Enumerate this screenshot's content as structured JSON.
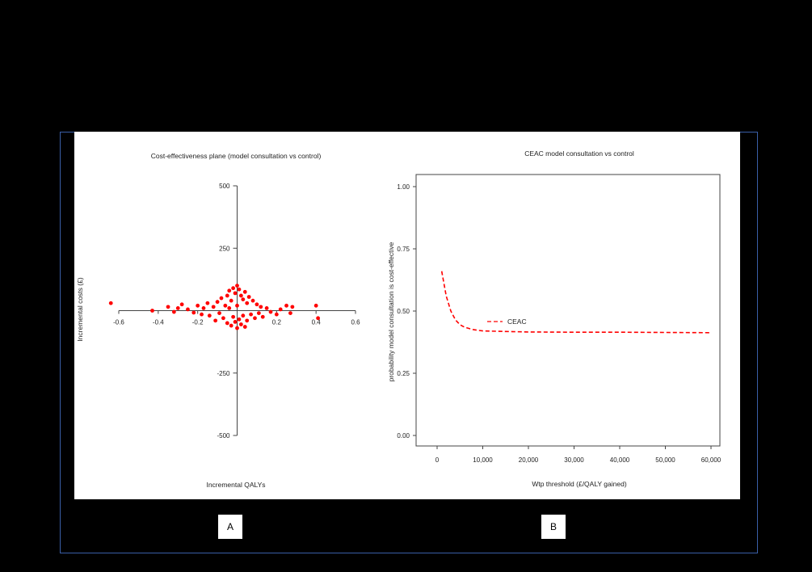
{
  "panel_labels": {
    "a": "A",
    "b": "B"
  },
  "colors": {
    "series": "#ff0000",
    "frame": "#3a5fa8"
  },
  "chart_data": [
    {
      "type": "scatter",
      "title": "Cost-effectiveness plane (model consultation vs control)",
      "xlabel": "Incremental QALYs",
      "ylabel": "Incremental costs (£)",
      "xlim": [
        -0.6,
        0.6
      ],
      "ylim": [
        -500,
        500
      ],
      "xticks": [
        -0.6,
        -0.4,
        -0.2,
        0.2,
        0.4,
        0.6
      ],
      "xtick_labels": [
        "-0.6",
        "-0.4",
        "-0.2",
        "0.2",
        "0.4",
        "0.6"
      ],
      "yticks": [
        -500,
        -250,
        250,
        500
      ],
      "ytick_labels": [
        "-500",
        "-250",
        "250",
        "500"
      ],
      "grid": false,
      "series": [
        {
          "points": [
            [
              -0.64,
              30
            ],
            [
              -0.43,
              0
            ],
            [
              -0.35,
              15
            ],
            [
              -0.32,
              -5
            ],
            [
              -0.3,
              10
            ],
            [
              -0.28,
              25
            ],
            [
              -0.25,
              5
            ],
            [
              -0.22,
              -8
            ],
            [
              -0.2,
              20
            ],
            [
              -0.18,
              -15
            ],
            [
              -0.17,
              10
            ],
            [
              -0.15,
              30
            ],
            [
              -0.14,
              -20
            ],
            [
              -0.12,
              15
            ],
            [
              -0.11,
              -40
            ],
            [
              -0.1,
              35
            ],
            [
              -0.09,
              -10
            ],
            [
              -0.08,
              50
            ],
            [
              -0.07,
              -30
            ],
            [
              -0.06,
              20
            ],
            [
              -0.05,
              60
            ],
            [
              -0.05,
              -50
            ],
            [
              -0.04,
              10
            ],
            [
              -0.04,
              80
            ],
            [
              -0.03,
              -60
            ],
            [
              -0.03,
              40
            ],
            [
              -0.02,
              90
            ],
            [
              -0.02,
              -25
            ],
            [
              -0.01,
              70
            ],
            [
              -0.01,
              -45
            ],
            [
              0,
              100
            ],
            [
              0,
              -70
            ],
            [
              0,
              20
            ],
            [
              0.01,
              85
            ],
            [
              0.01,
              -35
            ],
            [
              0.02,
              60
            ],
            [
              0.02,
              -55
            ],
            [
              0.03,
              45
            ],
            [
              0.03,
              -20
            ],
            [
              0.04,
              75
            ],
            [
              0.04,
              -65
            ],
            [
              0.05,
              30
            ],
            [
              0.05,
              -40
            ],
            [
              0.06,
              55
            ],
            [
              0.07,
              -15
            ],
            [
              0.08,
              40
            ],
            [
              0.09,
              -30
            ],
            [
              0.1,
              25
            ],
            [
              0.11,
              -10
            ],
            [
              0.12,
              15
            ],
            [
              0.13,
              -25
            ],
            [
              0.15,
              10
            ],
            [
              0.17,
              -5
            ],
            [
              0.2,
              -15
            ],
            [
              0.22,
              5
            ],
            [
              0.25,
              20
            ],
            [
              0.27,
              -10
            ],
            [
              0.28,
              15
            ],
            [
              0.4,
              20
            ],
            [
              0.41,
              -30
            ]
          ]
        }
      ]
    },
    {
      "type": "line",
      "title": "CEAC model consultation vs control",
      "xlabel": "Wtp threshold (£/QALY gained)",
      "ylabel": "probability model consultation is cost-effective",
      "xlim": [
        0,
        60000
      ],
      "ylim": [
        0,
        1
      ],
      "xticks": [
        0,
        10000,
        20000,
        30000,
        40000,
        50000,
        60000
      ],
      "xtick_labels": [
        "0",
        "10,000",
        "20,000",
        "30,000",
        "40,000",
        "50,000",
        "60,000"
      ],
      "yticks": [
        0,
        0.25,
        0.5,
        0.75,
        1
      ],
      "ytick_labels": [
        "0.00",
        "0.25",
        "0.50",
        "0.75",
        "1.00"
      ],
      "grid": false,
      "legend": "center-left",
      "series": [
        {
          "name": "CEAC",
          "x": [
            1000,
            2000,
            3000,
            4000,
            5000,
            6000,
            8000,
            10000,
            15000,
            20000,
            30000,
            40000,
            50000,
            60000
          ],
          "y": [
            0.66,
            0.56,
            0.5,
            0.465,
            0.445,
            0.435,
            0.425,
            0.42,
            0.418,
            0.416,
            0.415,
            0.415,
            0.414,
            0.413
          ]
        }
      ]
    }
  ]
}
